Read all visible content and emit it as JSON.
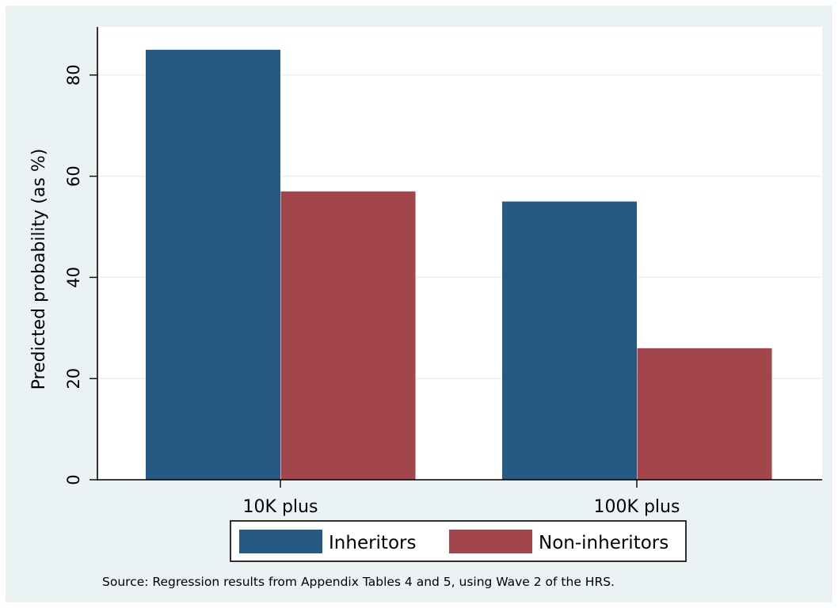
{
  "chart_data": {
    "type": "bar",
    "categories": [
      "10K plus",
      "100K plus"
    ],
    "series": [
      {
        "name": "Inheritors",
        "values": [
          85,
          55
        ],
        "color": "#245a83"
      },
      {
        "name": "Non-inheritors",
        "values": [
          57,
          26
        ],
        "color": "#a3464b"
      }
    ],
    "ylabel": "Predicted probability (as %)",
    "xlabel": "",
    "ylim": [
      0,
      90
    ],
    "yticks": [
      0,
      20,
      40,
      60,
      80
    ],
    "grid": true,
    "legend_position": "bottom",
    "note": "Source: Regression results from Appendix Tables 4 and 5, using Wave 2 of the HRS."
  },
  "colors": {
    "background": "#eaf2f3",
    "plot_area": "#ffffff",
    "grid": "#eaf2f3"
  }
}
